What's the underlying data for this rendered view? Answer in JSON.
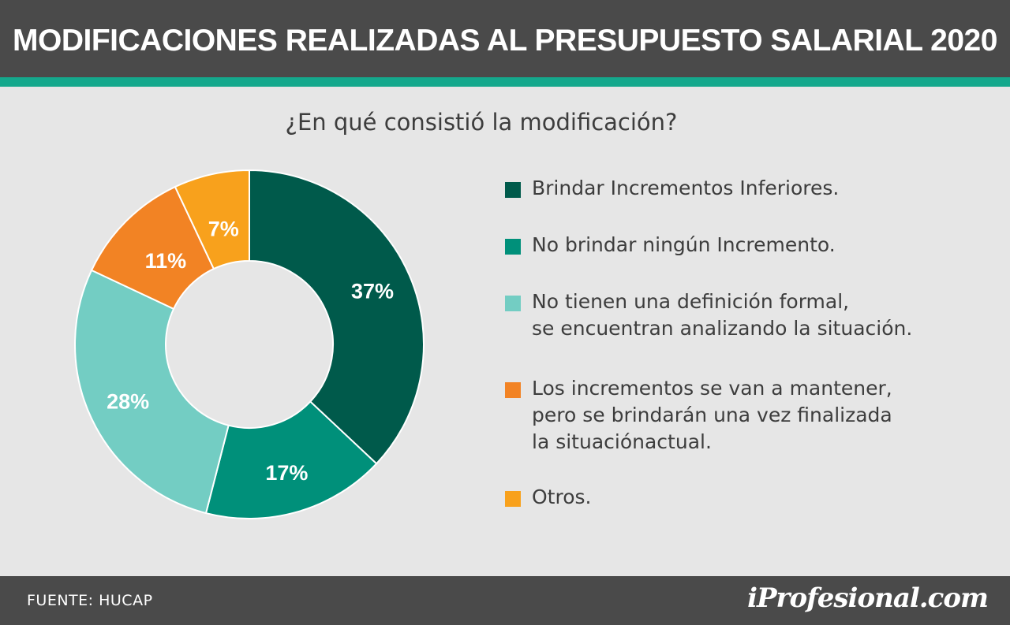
{
  "header": {
    "title": "MODIFICACIONES REALIZADAS AL PRESUPUESTO SALARIAL 2020"
  },
  "footer": {
    "source": "FUENTE:  HUCAP",
    "logo": "iProfesional.com"
  },
  "colors": {
    "header_bg": "#4a4a4a",
    "accent": "#14a88c",
    "background": "#e6e6e6"
  },
  "chart_data": {
    "type": "pie",
    "donut": true,
    "title": "¿En qué consistió la modificación?",
    "legend_position": "right",
    "categories": [
      "Brindar Incrementos Inferiores.",
      "No brindar ningún Incremento.",
      "No tienen una definición formal,\nse encuentran analizando la situación.",
      "Los incrementos se van a mantener,\npero se brindarán una vez finalizada\nla situaciónactual.",
      "Otros."
    ],
    "values": [
      37,
      17,
      28,
      11,
      7
    ],
    "labels": [
      "37%",
      "17%",
      "28%",
      "11%",
      "7%"
    ],
    "colors": [
      "#005a4b",
      "#00907a",
      "#73cdc3",
      "#f28324",
      "#f8a11c"
    ]
  }
}
